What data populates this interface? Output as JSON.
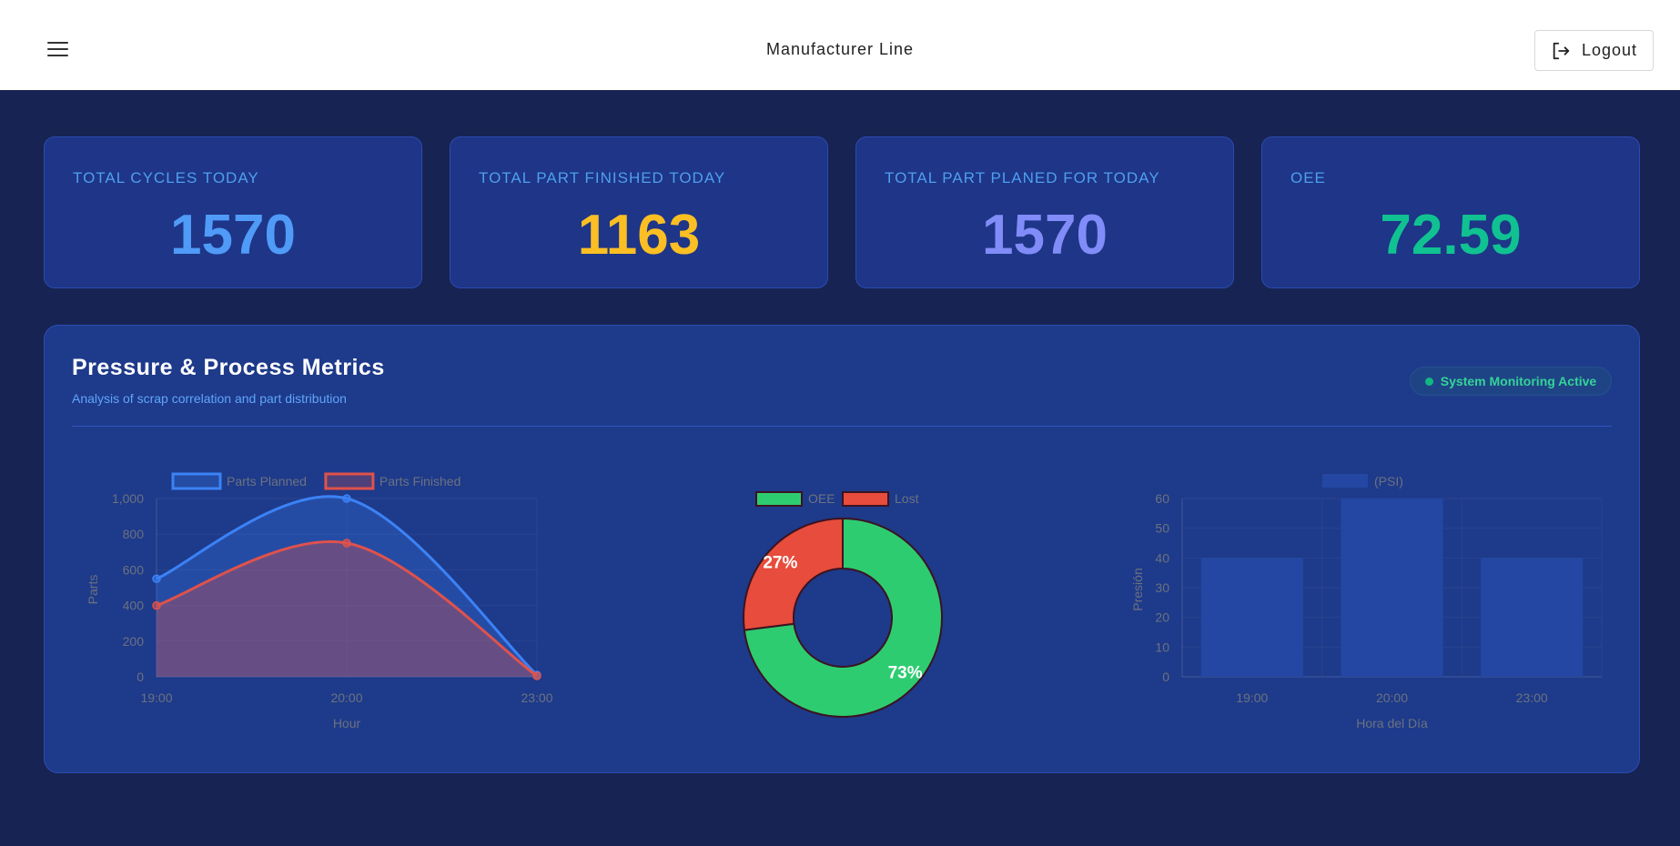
{
  "header": {
    "title": "Manufacturer Line",
    "logout_label": "Logout"
  },
  "kpis": [
    {
      "label": "TOTAL CYCLES TODAY",
      "value": "1570",
      "color": "#4f9bf7"
    },
    {
      "label": "TOTAL PART FINISHED TODAY",
      "value": "1163",
      "color": "#fbbf24"
    },
    {
      "label": "TOTAL PART PLANED FOR TODAY",
      "value": "1570",
      "color": "#818cf8"
    },
    {
      "label": "OEE",
      "value": "72.59",
      "color": "#10c291"
    }
  ],
  "panel": {
    "title": "Pressure & Process Metrics",
    "subtitle": "Analysis of scrap correlation and part distribution",
    "status": "System Monitoring Active"
  },
  "chart_data": [
    {
      "type": "area",
      "x": [
        "19:00",
        "20:00",
        "23:00"
      ],
      "series": [
        {
          "name": "Parts Planned",
          "values": [
            550,
            1000,
            10
          ],
          "color": "#3b82f6"
        },
        {
          "name": "Parts Finished",
          "values": [
            400,
            750,
            5
          ],
          "color": "#e0524b"
        }
      ],
      "xlabel": "Hour",
      "ylabel": "Parts",
      "ylim": [
        0,
        1000
      ],
      "yticks": [
        "0",
        "200",
        "400",
        "600",
        "800",
        "1,000"
      ],
      "legend": "top"
    },
    {
      "type": "pie",
      "categories": [
        "OEE",
        "Lost"
      ],
      "values": [
        73,
        27
      ],
      "value_labels": [
        "73%",
        "27%"
      ],
      "colors": [
        "#2ecc71",
        "#e74c3c"
      ],
      "legend": "top"
    },
    {
      "type": "bar",
      "categories": [
        "19:00",
        "20:00",
        "23:00"
      ],
      "series": [
        {
          "name": "(PSI)",
          "values": [
            40,
            60,
            40
          ]
        }
      ],
      "xlabel": "Hora del Día",
      "ylabel": "Presión",
      "ylim": [
        0,
        60
      ],
      "yticks": [
        "0",
        "10",
        "20",
        "30",
        "40",
        "50",
        "60"
      ],
      "legend": "top"
    }
  ]
}
